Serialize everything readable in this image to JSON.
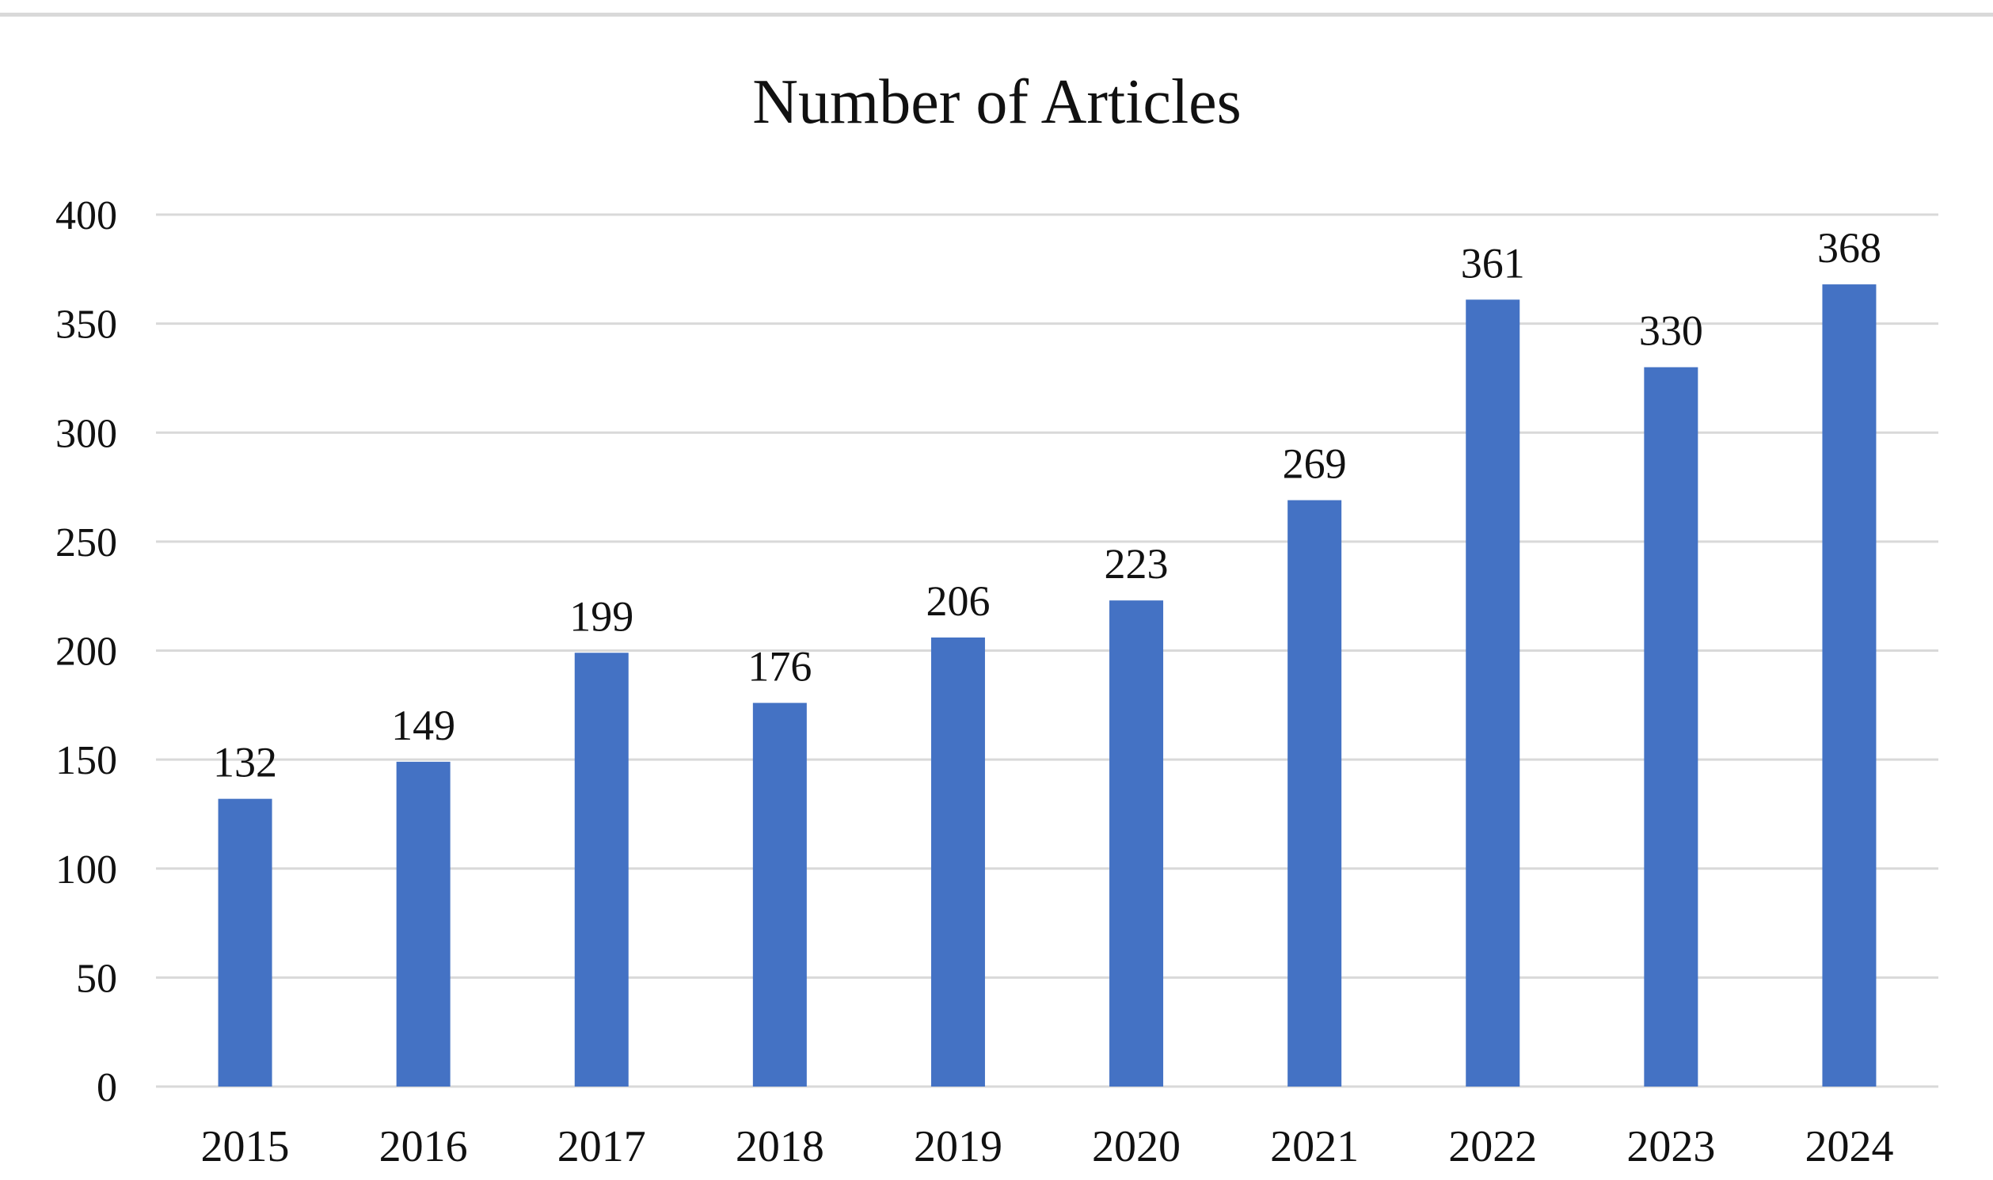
{
  "chart_data": {
    "type": "bar",
    "title": "Number of Articles",
    "categories": [
      "2015",
      "2016",
      "2017",
      "2018",
      "2019",
      "2020",
      "2021",
      "2022",
      "2023",
      "2024"
    ],
    "values": [
      132,
      149,
      199,
      176,
      206,
      223,
      269,
      361,
      330,
      368
    ],
    "data_labels": [
      "132",
      "149",
      "199",
      "176",
      "206",
      "223",
      "269",
      "361",
      "330",
      "368"
    ],
    "xlabel": "",
    "ylabel": "",
    "ylim": [
      0,
      400
    ],
    "y_ticks": [
      0,
      50,
      100,
      150,
      200,
      250,
      300,
      350,
      400
    ],
    "y_tick_labels": [
      "0",
      "50",
      "100",
      "150",
      "200",
      "250",
      "300",
      "350",
      "400"
    ],
    "grid": true,
    "legend": "none",
    "bar_color": "#4472C4",
    "gridline_color": "#D9D9D9",
    "frame_color": "#D9D9D9"
  }
}
